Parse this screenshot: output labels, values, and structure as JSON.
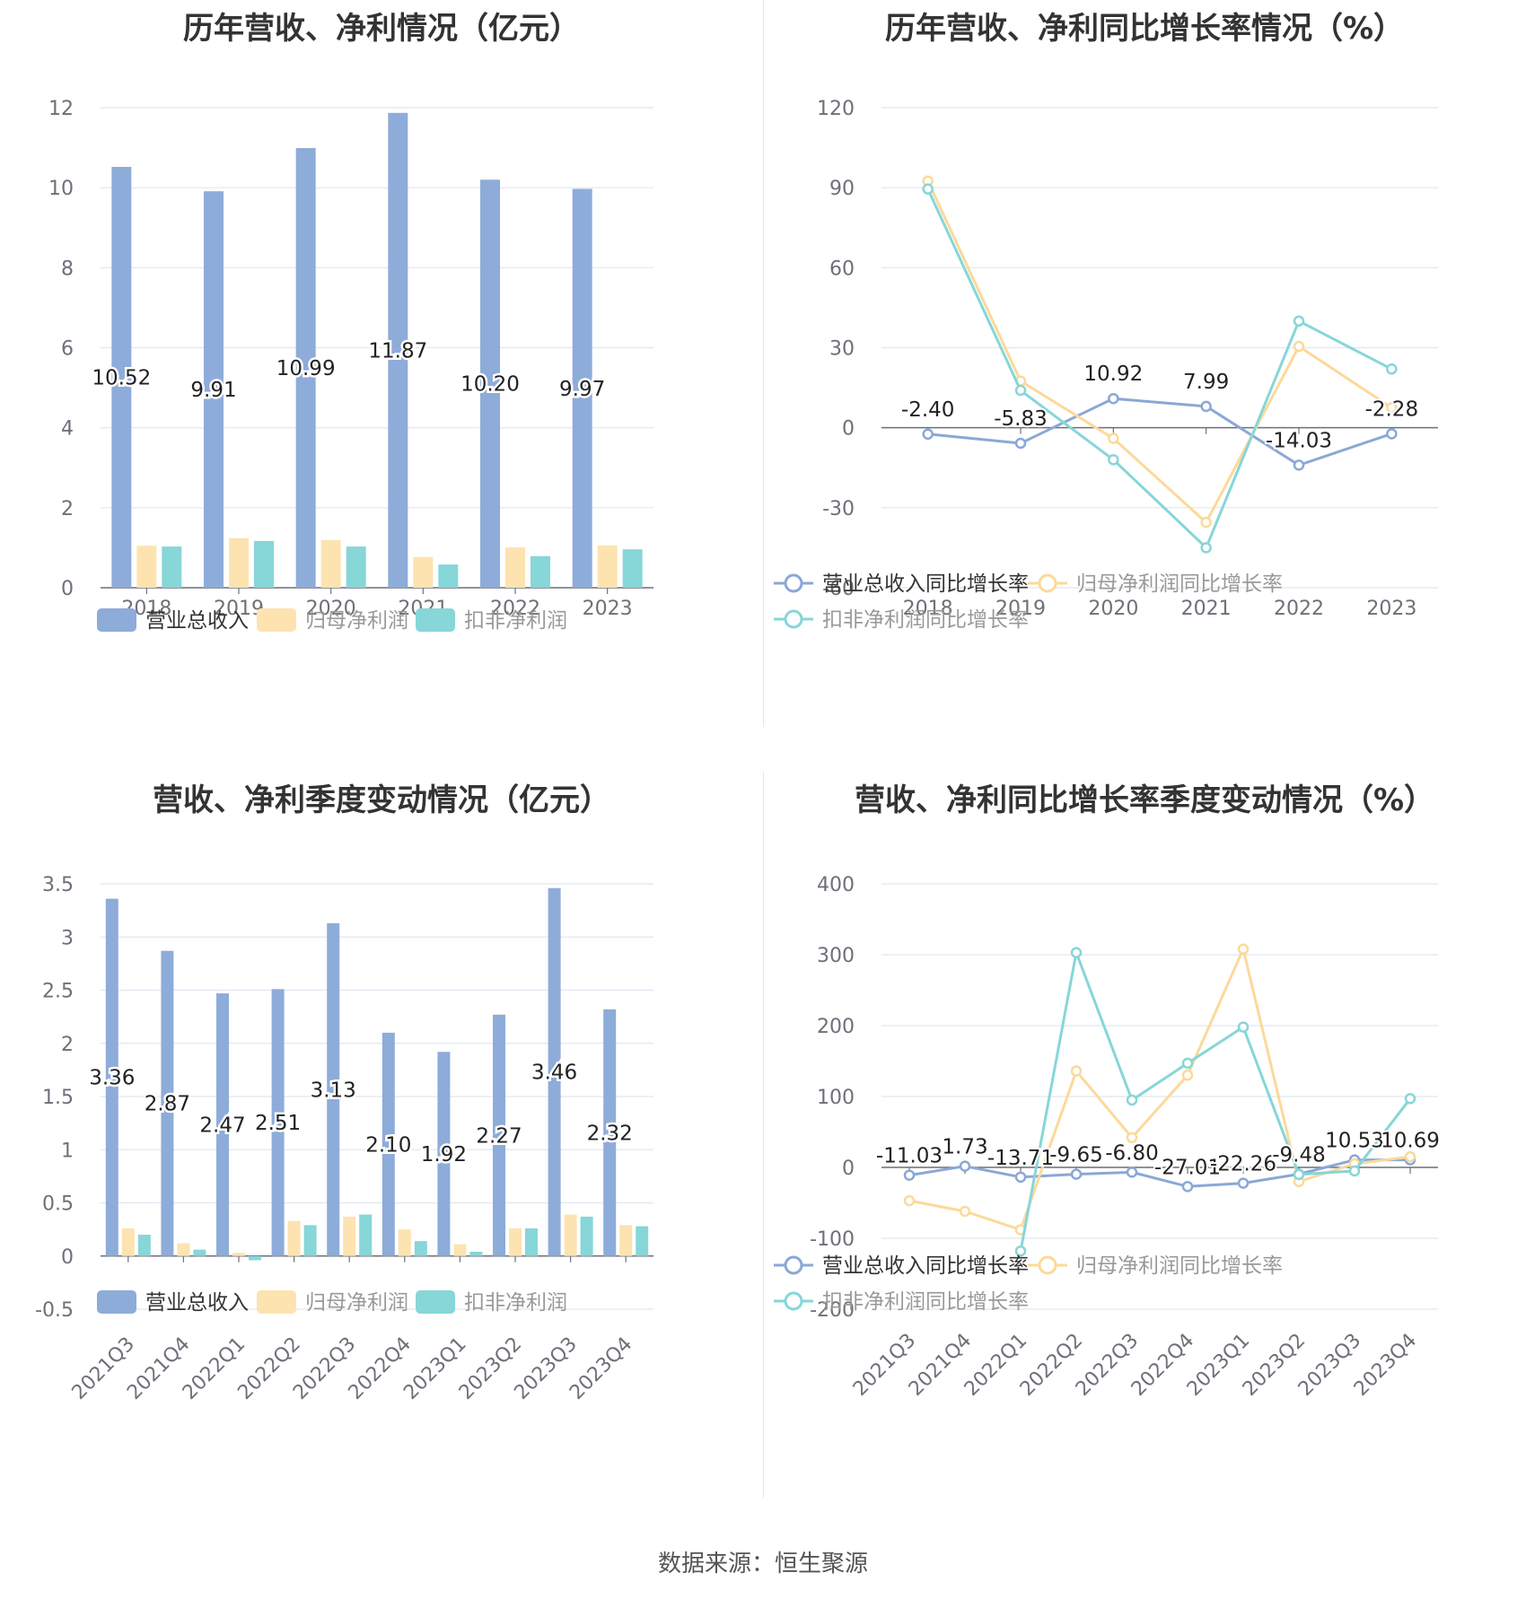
{
  "colors": {
    "revenue": "#8eacd9",
    "net_profit": "#fde3b0",
    "deducted_profit": "#87d6d8",
    "revenue_line": "#8aa8d6",
    "net_line": "#fcd99a",
    "deducted_line": "#87d6d8",
    "grid": "#e0e6f1",
    "axis_text": "#6e7079"
  },
  "source_text": "数据来源：恒生聚源",
  "chart_data": [
    {
      "id": "annual-bar",
      "type": "bar",
      "title": "历年营收、净利情况（亿元）",
      "categories": [
        "2018",
        "2019",
        "2020",
        "2021",
        "2022",
        "2023"
      ],
      "ylim": [
        0,
        12
      ],
      "yticks": [
        0,
        2,
        4,
        6,
        8,
        10,
        12
      ],
      "series": [
        {
          "name": "营业总收入",
          "values": [
            10.52,
            9.91,
            10.99,
            11.87,
            10.2,
            9.97
          ],
          "labels": [
            "10.52",
            "9.91",
            "10.99",
            "11.87",
            "10.20",
            "9.97"
          ]
        },
        {
          "name": "归母净利润",
          "values": [
            1.05,
            1.24,
            1.19,
            0.77,
            1.01,
            1.06
          ]
        },
        {
          "name": "扣非净利润",
          "values": [
            1.03,
            1.17,
            1.03,
            0.58,
            0.79,
            0.96
          ]
        }
      ],
      "legend_position": "bottom"
    },
    {
      "id": "annual-line",
      "type": "line",
      "title": "历年营收、净利同比增长率情况（%）",
      "categories": [
        "2018",
        "2019",
        "2020",
        "2021",
        "2022",
        "2023"
      ],
      "ylim": [
        -60,
        120
      ],
      "yticks": [
        -60,
        -30,
        0,
        30,
        60,
        90,
        120
      ],
      "series": [
        {
          "name": "营业总收入同比增长率",
          "values": [
            -2.4,
            -5.83,
            10.92,
            7.99,
            -14.03,
            -2.28
          ],
          "labels": [
            "-2.40",
            "-5.83",
            "10.92",
            "7.99",
            "-14.03",
            "-2.28"
          ]
        },
        {
          "name": "归母净利润同比增长率",
          "values": [
            92.5,
            17.5,
            -4.0,
            -35.5,
            30.5,
            7.5
          ]
        },
        {
          "name": "扣非净利润同比增长率",
          "values": [
            89.5,
            14.0,
            -12.0,
            -45.0,
            40.0,
            22.0
          ]
        }
      ],
      "legend_position": "bottom"
    },
    {
      "id": "quarterly-bar",
      "type": "bar",
      "title": "营收、净利季度变动情况（亿元）",
      "categories": [
        "2021Q3",
        "2021Q4",
        "2022Q1",
        "2022Q2",
        "2022Q3",
        "2022Q4",
        "2023Q1",
        "2023Q2",
        "2023Q3",
        "2023Q4"
      ],
      "ylim": [
        -0.5,
        3.5
      ],
      "yticks": [
        -0.5,
        0,
        0.5,
        1,
        1.5,
        2,
        2.5,
        3,
        3.5
      ],
      "series": [
        {
          "name": "营业总收入",
          "values": [
            3.36,
            2.87,
            2.47,
            2.51,
            3.13,
            2.1,
            1.92,
            2.27,
            3.46,
            2.32
          ],
          "labels": [
            "3.36",
            "2.87",
            "2.47",
            "2.51",
            "3.13",
            "2.10",
            "1.92",
            "2.27",
            "3.46",
            "2.32"
          ]
        },
        {
          "name": "归母净利润",
          "values": [
            0.26,
            0.12,
            0.03,
            0.33,
            0.37,
            0.25,
            0.11,
            0.26,
            0.39,
            0.29
          ]
        },
        {
          "name": "扣非净利润",
          "values": [
            0.2,
            0.06,
            -0.04,
            0.29,
            0.39,
            0.14,
            0.04,
            0.26,
            0.37,
            0.28
          ]
        }
      ],
      "legend_position": "bottom"
    },
    {
      "id": "quarterly-line",
      "type": "line",
      "title": "营收、净利同比增长率季度变动情况（%）",
      "categories": [
        "2021Q3",
        "2021Q4",
        "2022Q1",
        "2022Q2",
        "2022Q3",
        "2022Q4",
        "2023Q1",
        "2023Q2",
        "2023Q3",
        "2023Q4"
      ],
      "ylim": [
        -200,
        400
      ],
      "yticks": [
        -200,
        -100,
        0,
        100,
        200,
        300,
        400
      ],
      "series": [
        {
          "name": "营业总收入同比增长率",
          "values": [
            -11.03,
            1.73,
            -13.71,
            -9.65,
            -6.8,
            -27.01,
            -22.26,
            -9.48,
            10.53,
            10.69
          ],
          "labels": [
            "-11.03",
            "1.73",
            "-13.71",
            "-9.65",
            "-6.80",
            "-27.01",
            "-22.26",
            "-9.48",
            "10.53",
            "10.69"
          ]
        },
        {
          "name": "归母净利润同比增长率",
          "values": [
            -47,
            -62,
            -88,
            136,
            42,
            130,
            308,
            -20,
            5,
            15
          ]
        },
        {
          "name": "扣非净利润同比增长率",
          "values": [
            null,
            null,
            -118,
            303,
            95,
            147,
            198,
            -10,
            -5,
            97
          ]
        }
      ],
      "legend_position": "bottom"
    }
  ]
}
